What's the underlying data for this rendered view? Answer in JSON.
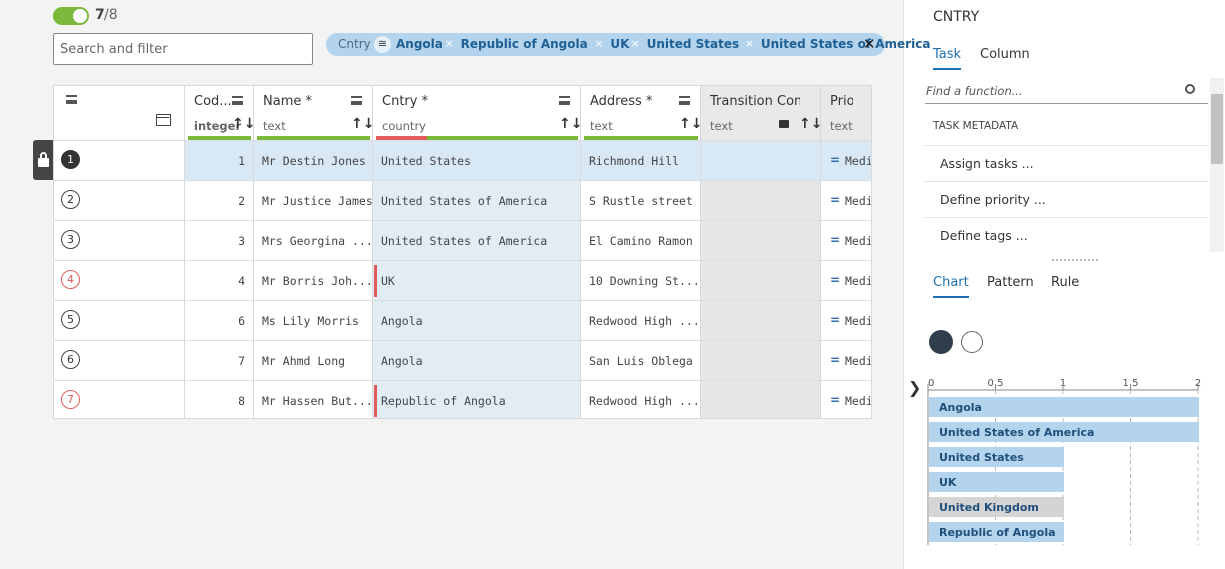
{
  "toolbar": {
    "count": "7",
    "total": "/8",
    "search_placeholder": "Search and filter",
    "filter": {
      "column": "Cntry",
      "values": [
        "Angola",
        "Republic of Angola",
        "UK",
        "United States",
        "United States of America"
      ]
    }
  },
  "table": {
    "columns": [
      {
        "name": "Cod...",
        "type": "integer"
      },
      {
        "name": "Name *",
        "type": "text"
      },
      {
        "name": "Cntry *",
        "type": "country"
      },
      {
        "name": "Address *",
        "type": "text"
      },
      {
        "name": "Transition Com...",
        "type": "text"
      },
      {
        "name": "Priority",
        "type": "text"
      }
    ],
    "rows": [
      {
        "index": 1,
        "code": 1,
        "name": "Mr Destin Jones",
        "country": "United States",
        "address": "Richmond Hill",
        "priority": "Medium"
      },
      {
        "index": 2,
        "code": 2,
        "name": "Mr Justice James",
        "country": "United States of America",
        "address": "S Rustle street",
        "priority": "Medium"
      },
      {
        "index": 3,
        "code": 3,
        "name": "Mrs Georgina ...",
        "country": "United States of America",
        "address": "El Camino Ramon",
        "priority": "Medium"
      },
      {
        "index": 4,
        "code": 4,
        "name": "Mr Borris Joh...",
        "country": "UK",
        "address": "10 Downing St...",
        "priority": "Medium"
      },
      {
        "index": 5,
        "code": 6,
        "name": "Ms Lily Morris",
        "country": "Angola",
        "address": "Redwood High ...",
        "priority": "Medium"
      },
      {
        "index": 6,
        "code": 7,
        "name": "Mr Ahmd Long",
        "country": "Angola",
        "address": "San Luis Oblega",
        "priority": "Medium"
      },
      {
        "index": 7,
        "code": 8,
        "name": "Mr Hassen But...",
        "country": "Republic of Angola",
        "address": "Redwood High ...",
        "priority": "Medium"
      }
    ]
  },
  "side_panel": {
    "title": "CNTRY",
    "tabs": [
      "Task",
      "Column"
    ],
    "search_placeholder": "Find a function...",
    "section": "TASK METADATA",
    "items": [
      "Assign tasks ...",
      "Define priority ...",
      "Define tags ..."
    ],
    "chart_tabs": [
      "Chart",
      "Pattern",
      "Rule"
    ],
    "chart": {
      "type": "bar",
      "categories": [
        "Angola",
        "United States of America",
        "United States",
        "UK",
        "United Kingdom",
        "Republic of Angola"
      ],
      "values": [
        2,
        2,
        1,
        1,
        1,
        1
      ],
      "colors": [
        "#b3d4ec",
        "#b3d4ec",
        "#b3d4ec",
        "#b3d4ec",
        "#d4d4d4",
        "#b3d4ec"
      ],
      "xlim": [
        0,
        2
      ],
      "xticks": [
        0,
        0.5,
        1,
        1.5,
        2
      ]
    }
  }
}
